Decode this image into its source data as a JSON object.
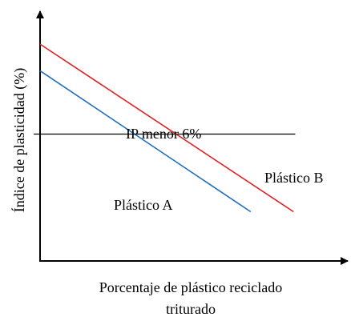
{
  "chart_data": {
    "type": "line",
    "xlabel": "Porcentaje de plástico reciclado triturado",
    "xlabel_lines": [
      "Porcentaje de plástico reciclado",
      "triturado"
    ],
    "ylabel": "Índice de plasticidad (%)",
    "xlim": [
      0,
      100
    ],
    "ylim": [
      0,
      100
    ],
    "grid": false,
    "ticks": false,
    "series": [
      {
        "name": "Plástico A",
        "color": "#1f6fbf",
        "points": [
          [
            0,
            78.4
          ],
          [
            73.2,
            20.3
          ]
        ]
      },
      {
        "name": "Plástico B",
        "color": "#e02020",
        "points": [
          [
            0,
            89.4
          ],
          [
            88.1,
            20.3
          ]
        ]
      }
    ],
    "reference_line": {
      "label": "IP menor 6%",
      "y": 52.3,
      "x_start": -2.2,
      "x_end": 88.7,
      "color": "#000000"
    }
  }
}
